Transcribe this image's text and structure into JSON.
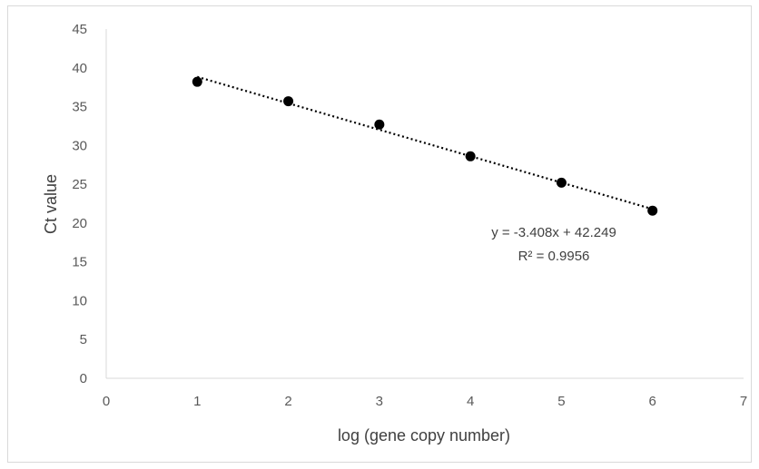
{
  "chart_data": {
    "type": "scatter",
    "title": "",
    "xlabel": "log (gene copy number)",
    "ylabel": "Ct value",
    "xlim": [
      0,
      7
    ],
    "ylim": [
      0,
      45
    ],
    "xticks": [
      0,
      1,
      2,
      3,
      4,
      5,
      6,
      7
    ],
    "yticks": [
      0,
      5,
      10,
      15,
      20,
      25,
      30,
      35,
      40,
      45
    ],
    "grid": false,
    "legend": "none",
    "series": [
      {
        "x": [
          1,
          2,
          3,
          4,
          5,
          6
        ],
        "y": [
          38.2,
          35.7,
          32.7,
          28.6,
          25.2,
          21.6
        ],
        "marker": "circle",
        "color": "#000000"
      }
    ],
    "trendline": {
      "type": "linear",
      "slope": -3.408,
      "intercept": 42.249,
      "x_range": [
        1,
        6
      ],
      "style": "dotted",
      "color": "#000000"
    },
    "annotations": {
      "equation": "y = -3.408x + 42.249",
      "r_squared": "R² = 0.9956"
    }
  }
}
